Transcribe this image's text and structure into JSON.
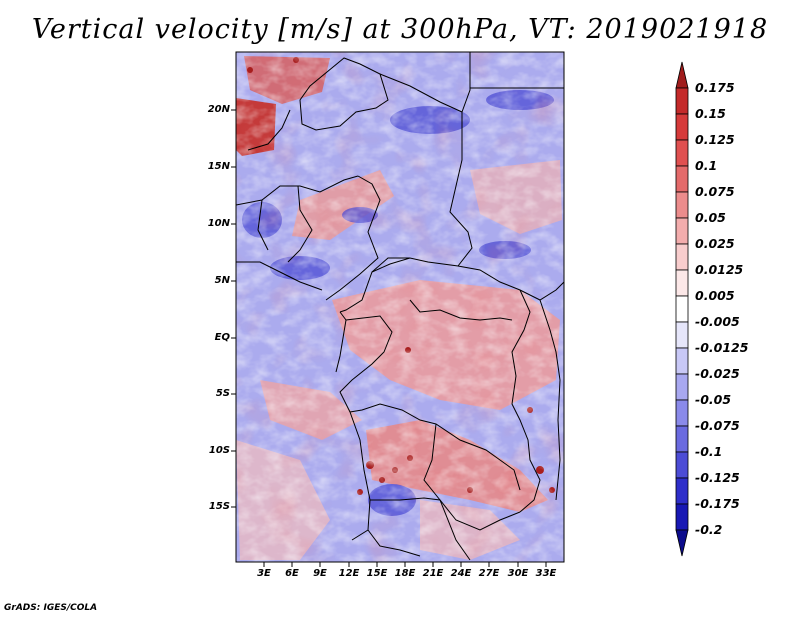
{
  "title": "Vertical velocity [m/s] at 300hPa, VT: 2019021918",
  "credit": "GrADS: IGES/COLA",
  "map": {
    "lat_labels": [
      "20N",
      "15N",
      "10N",
      "5N",
      "EQ",
      "5S",
      "10S",
      "15S"
    ],
    "lon_labels": [
      "3E",
      "6E",
      "9E",
      "12E",
      "15E",
      "18E",
      "21E",
      "24E",
      "27E",
      "30E",
      "33E"
    ]
  },
  "colorbar": {
    "levels": [
      "0.175",
      "0.15",
      "0.125",
      "0.1",
      "0.075",
      "0.05",
      "0.025",
      "0.0125",
      "0.005",
      "-0.005",
      "-0.0125",
      "-0.025",
      "-0.05",
      "-0.075",
      "-0.1",
      "-0.125",
      "-0.175",
      "-0.2"
    ],
    "colors": [
      "#a01c1c",
      "#c42a2a",
      "#d63a3a",
      "#e05050",
      "#e46a6a",
      "#ec8c8c",
      "#f3adad",
      "#f8cdcd",
      "#fce8e8",
      "#ffffff",
      "#e6e6fa",
      "#c8c8f6",
      "#a8a8f0",
      "#8a8aea",
      "#6a6ae0",
      "#4c4cd6",
      "#2e2eca",
      "#1818b4",
      "#0c0c8c"
    ]
  }
}
